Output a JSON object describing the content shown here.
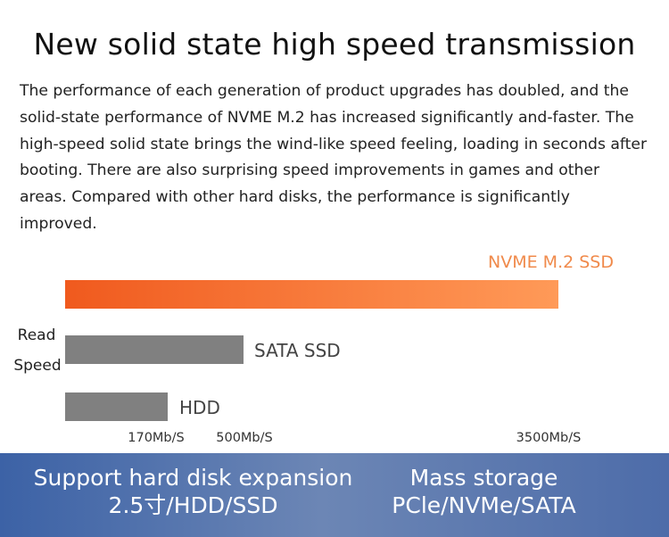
{
  "header": {
    "title": "New solid state high speed transmission",
    "description": "The performance of each generation of product upgrades has doubled, and the solid-state performance of NVME M.2 has increased significantly and-faster. The high-speed solid state brings the wind-like speed feeling, loading in seconds after booting. There are also surprising speed improvements in games and other areas. Compared with other hard disks, the performance is significantly improved."
  },
  "chart_data": {
    "type": "bar",
    "orientation": "horizontal",
    "title": "",
    "ylabel_lines": [
      "Read",
      "Speed"
    ],
    "xlabel": "",
    "units": "Mb/S",
    "categories": [
      "NVME M.2 SSD",
      "SATA SSD",
      "HDD"
    ],
    "values": [
      3500,
      500,
      170
    ],
    "value_labels": [
      "3500Mb/S",
      "500Mb/S",
      "170Mb/S"
    ],
    "bar_colors": [
      "#f05a1e",
      "#808080",
      "#808080"
    ],
    "nvme_gradient_end": "#ff9a58",
    "label_colors": [
      "#f08a4b",
      "#444444",
      "#444444"
    ],
    "xlim": [
      0,
      3500
    ],
    "grid": false,
    "legend": "none"
  },
  "footer": {
    "left": {
      "line1": "Support hard disk expansion",
      "line2": "2.5寸/HDD/SSD"
    },
    "right": {
      "line1": "Mass storage",
      "line2": "PCle/NVMe/SATA"
    },
    "colors": {
      "start": "#3c62a6",
      "middle": "#6c86b5",
      "end": "#4d6ca9"
    }
  }
}
